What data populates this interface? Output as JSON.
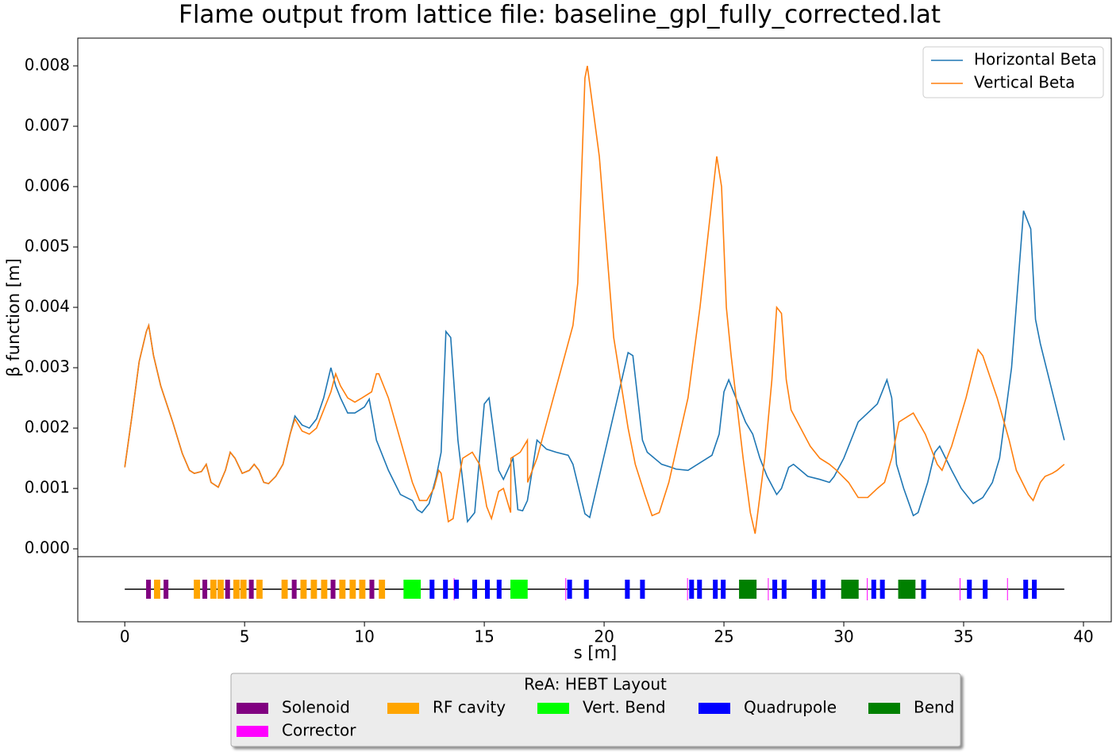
{
  "chart_data": {
    "type": "line",
    "title": "Flame output from lattice file: baseline_gpl_fully_corrected.lat",
    "x_label": "s [m]",
    "y_label": "β function [m]",
    "xlim": [
      -1.96,
      41.16
    ],
    "ylim": [
      -0.00013,
      0.00846
    ],
    "xticks": [
      0,
      5,
      10,
      15,
      20,
      25,
      30,
      35,
      40
    ],
    "yticks": [
      {
        "value": 0,
        "label": "0.000"
      },
      {
        "value": 0.001,
        "label": "0.001"
      },
      {
        "value": 0.002,
        "label": "0.002"
      },
      {
        "value": 0.003,
        "label": "0.003"
      },
      {
        "value": 0.004,
        "label": "0.004"
      },
      {
        "value": 0.005,
        "label": "0.005"
      },
      {
        "value": 0.006,
        "label": "0.006"
      },
      {
        "value": 0.007,
        "label": "0.007"
      },
      {
        "value": 0.008,
        "label": "0.008"
      }
    ],
    "legend": "upper right",
    "series": [
      {
        "name": "Horizontal Beta",
        "color": "#1f77b4",
        "x": [
          0,
          0.3,
          0.6,
          0.9,
          1.0,
          1.2,
          1.5,
          2.0,
          2.4,
          2.7,
          2.9,
          3.2,
          3.4,
          3.6,
          3.9,
          4.2,
          4.4,
          4.6,
          4.9,
          5.2,
          5.4,
          5.6,
          5.8,
          6.0,
          6.3,
          6.6,
          6.9,
          7.1,
          7.4,
          7.7,
          8.0,
          8.3,
          8.6,
          8.8,
          9.0,
          9.3,
          9.6,
          9.8,
          10.0,
          10.2,
          10.5,
          11.0,
          11.5,
          12.0,
          12.2,
          12.4,
          12.7,
          13.0,
          13.2,
          13.4,
          13.6,
          13.9,
          14.3,
          14.6,
          15.0,
          15.2,
          15.6,
          15.8,
          16.2,
          16.4,
          16.6,
          16.8,
          17.2,
          17.6,
          18.0,
          18.5,
          18.7,
          19.2,
          19.4,
          21.0,
          21.2,
          21.6,
          21.8,
          22.4,
          22.8,
          23.0,
          23.5,
          24.5,
          24.8,
          25.0,
          25.2,
          25.6,
          25.9,
          26.2,
          26.5,
          26.8,
          27.2,
          27.4,
          27.7,
          27.9,
          28.2,
          28.5,
          29.0,
          29.4,
          29.6,
          30.0,
          30.3,
          30.6,
          31.0,
          31.4,
          31.8,
          32.0,
          32.2,
          32.5,
          32.9,
          33.1,
          33.5,
          33.8,
          34.0,
          34.5,
          34.9,
          35.4,
          35.8,
          36.2,
          36.5,
          37.0,
          37.5,
          37.8,
          38.0,
          38.2,
          39.2
        ],
        "values": [
          0.00135,
          0.0022,
          0.0031,
          0.0036,
          0.0037,
          0.0032,
          0.0027,
          0.0021,
          0.00158,
          0.0013,
          0.00125,
          0.00128,
          0.0014,
          0.0011,
          0.00102,
          0.0013,
          0.0016,
          0.0015,
          0.00125,
          0.0013,
          0.0014,
          0.0013,
          0.0011,
          0.00108,
          0.0012,
          0.0014,
          0.0019,
          0.0022,
          0.00205,
          0.002,
          0.00215,
          0.0025,
          0.003,
          0.0027,
          0.0025,
          0.00225,
          0.00225,
          0.0023,
          0.00235,
          0.00248,
          0.0018,
          0.0013,
          0.0009,
          0.0008,
          0.00065,
          0.0006,
          0.00075,
          0.0012,
          0.0016,
          0.0036,
          0.0035,
          0.0018,
          0.00045,
          0.0006,
          0.0024,
          0.0025,
          0.0013,
          0.00115,
          0.0015,
          0.00065,
          0.00063,
          0.0008,
          0.0018,
          0.00165,
          0.0016,
          0.00155,
          0.0014,
          0.00058,
          0.00052,
          0.00325,
          0.0032,
          0.0018,
          0.0016,
          0.0014,
          0.00135,
          0.00132,
          0.0013,
          0.00155,
          0.0019,
          0.0026,
          0.0028,
          0.0024,
          0.0021,
          0.0019,
          0.0015,
          0.0012,
          0.0009,
          0.001,
          0.00135,
          0.0014,
          0.0013,
          0.0012,
          0.00115,
          0.0011,
          0.0012,
          0.0015,
          0.0018,
          0.0021,
          0.00225,
          0.0024,
          0.0028,
          0.0025,
          0.0014,
          0.001,
          0.00055,
          0.0006,
          0.0011,
          0.0016,
          0.0017,
          0.0013,
          0.001,
          0.00075,
          0.00085,
          0.0011,
          0.0015,
          0.003,
          0.0056,
          0.0053,
          0.0038,
          0.0034,
          0.0018
        ]
      },
      {
        "name": "Vertical Beta",
        "color": "#ff7f0e",
        "x": [
          0,
          0.3,
          0.6,
          0.9,
          1.0,
          1.2,
          1.5,
          2.0,
          2.4,
          2.7,
          2.9,
          3.2,
          3.4,
          3.6,
          3.9,
          4.2,
          4.4,
          4.6,
          4.9,
          5.2,
          5.4,
          5.6,
          5.8,
          6.0,
          6.3,
          6.6,
          6.9,
          7.1,
          7.4,
          7.7,
          8.0,
          8.3,
          8.6,
          8.8,
          9.0,
          9.3,
          9.6,
          9.9,
          10.3,
          10.5,
          10.6,
          11.0,
          11.5,
          12.0,
          12.3,
          12.6,
          12.9,
          13.1,
          13.2,
          13.5,
          13.7,
          14.0,
          14.1,
          14.5,
          14.8,
          15.1,
          15.3,
          15.6,
          15.8,
          16.1,
          16.11,
          16.5,
          16.8,
          16.81,
          17.2,
          18.7,
          18.9,
          19.2,
          19.3,
          19.8,
          20.4,
          21.0,
          21.3,
          21.7,
          22.0,
          22.3,
          22.7,
          23.5,
          24.0,
          24.7,
          24.9,
          25.1,
          25.3,
          25.8,
          26.1,
          26.3,
          26.7,
          27.0,
          27.2,
          27.4,
          27.6,
          27.8,
          28.2,
          28.6,
          29.0,
          29.4,
          29.7,
          30.2,
          30.6,
          31.0,
          31.4,
          31.7,
          32.0,
          32.3,
          32.9,
          33.4,
          33.6,
          33.9,
          34.1,
          34.5,
          35.1,
          35.6,
          35.8,
          36.4,
          36.9,
          37.2,
          37.7,
          37.9,
          38.2,
          38.4,
          38.7,
          38.9,
          39.2
        ],
        "values": [
          0.00135,
          0.0022,
          0.0031,
          0.0036,
          0.0037,
          0.0032,
          0.0027,
          0.0021,
          0.00158,
          0.0013,
          0.00125,
          0.00128,
          0.0014,
          0.0011,
          0.00102,
          0.0013,
          0.0016,
          0.0015,
          0.00125,
          0.0013,
          0.0014,
          0.0013,
          0.0011,
          0.00108,
          0.0012,
          0.0014,
          0.0019,
          0.00215,
          0.00195,
          0.0019,
          0.002,
          0.0023,
          0.0026,
          0.0029,
          0.0027,
          0.0025,
          0.00243,
          0.0025,
          0.0026,
          0.0029,
          0.0029,
          0.0025,
          0.0018,
          0.0011,
          0.0008,
          0.0008,
          0.001,
          0.0013,
          0.00125,
          0.00045,
          0.0005,
          0.0013,
          0.0015,
          0.0016,
          0.0014,
          0.0007,
          0.0005,
          0.00095,
          0.001,
          0.0006,
          0.0015,
          0.0016,
          0.0018,
          0.0011,
          0.0015,
          0.0037,
          0.0044,
          0.0078,
          0.008,
          0.0065,
          0.0035,
          0.002,
          0.0014,
          0.0009,
          0.00055,
          0.0006,
          0.0011,
          0.0025,
          0.004,
          0.0065,
          0.006,
          0.004,
          0.0032,
          0.0015,
          0.0006,
          0.00025,
          0.0015,
          0.0028,
          0.004,
          0.0039,
          0.0028,
          0.0023,
          0.002,
          0.0017,
          0.0015,
          0.0014,
          0.0013,
          0.0011,
          0.00085,
          0.00085,
          0.001,
          0.0011,
          0.0015,
          0.0021,
          0.00225,
          0.0019,
          0.0017,
          0.0014,
          0.0013,
          0.0017,
          0.0025,
          0.0033,
          0.0032,
          0.0025,
          0.0018,
          0.0013,
          0.0009,
          0.0008,
          0.0011,
          0.0012,
          0.00125,
          0.0013,
          0.0014
        ]
      }
    ],
    "layout": {
      "title": "ReA: HEBT Layout",
      "items": [
        {
          "name": "Solenoid",
          "color": "#800080",
          "positions": [
            [
              0.89,
              1.09
            ],
            [
              1.62,
              1.82
            ],
            [
              3.24,
              3.44
            ],
            [
              4.19,
              4.39
            ],
            [
              5.18,
              5.38
            ],
            [
              6.97,
              7.17
            ],
            [
              8.59,
              8.79
            ],
            [
              10.21,
              10.41
            ]
          ]
        },
        {
          "name": "Corrector",
          "color": "#ff00ff",
          "positions": [
            [
              13.73,
              13.75
            ],
            [
              18.39,
              18.41
            ],
            [
              23.47,
              23.49
            ],
            [
              26.84,
              26.86
            ],
            [
              30.97,
              30.99
            ],
            [
              34.84,
              34.86
            ],
            [
              36.82,
              36.84
            ]
          ]
        },
        {
          "name": "RF cavity",
          "color": "#ffa500",
          "positions": [
            [
              1.22,
              1.48
            ],
            [
              2.88,
              3.14
            ],
            [
              3.57,
              3.83
            ],
            [
              3.87,
              4.13
            ],
            [
              4.53,
              4.79
            ],
            [
              4.82,
              5.08
            ],
            [
              5.49,
              5.75
            ],
            [
              6.54,
              6.8
            ],
            [
              7.33,
              7.59
            ],
            [
              7.76,
              8.02
            ],
            [
              8.19,
              8.45
            ],
            [
              8.95,
              9.21
            ],
            [
              9.38,
              9.64
            ],
            [
              9.78,
              10.04
            ],
            [
              10.6,
              10.86
            ]
          ]
        },
        {
          "name": "Vert. Bend",
          "color": "#00ff00",
          "positions": [
            [
              11.63,
              12.35
            ],
            [
              16.09,
              16.81
            ]
          ]
        },
        {
          "name": "Quadrupole",
          "color": "#0000ff",
          "positions": [
            [
              12.72,
              12.92
            ],
            [
              13.28,
              13.48
            ],
            [
              13.74,
              13.94
            ],
            [
              14.5,
              14.7
            ],
            [
              15.03,
              15.23
            ],
            [
              15.52,
              15.72
            ],
            [
              18.46,
              18.66
            ],
            [
              19.16,
              19.36
            ],
            [
              20.87,
              21.07
            ],
            [
              21.5,
              21.7
            ],
            [
              23.55,
              23.75
            ],
            [
              23.88,
              24.08
            ],
            [
              24.54,
              24.74
            ],
            [
              24.87,
              25.07
            ],
            [
              27.02,
              27.22
            ],
            [
              27.41,
              27.61
            ],
            [
              28.67,
              28.87
            ],
            [
              29.03,
              29.23
            ],
            [
              31.15,
              31.35
            ],
            [
              31.51,
              31.71
            ],
            [
              33.23,
              33.43
            ],
            [
              35.14,
              35.34
            ],
            [
              35.8,
              36.0
            ],
            [
              37.49,
              37.69
            ],
            [
              37.85,
              38.05
            ]
          ]
        },
        {
          "name": "Bend",
          "color": "#008000",
          "positions": [
            [
              25.63,
              26.36
            ],
            [
              29.89,
              30.62
            ],
            [
              32.27,
              32.99
            ]
          ]
        }
      ]
    }
  }
}
